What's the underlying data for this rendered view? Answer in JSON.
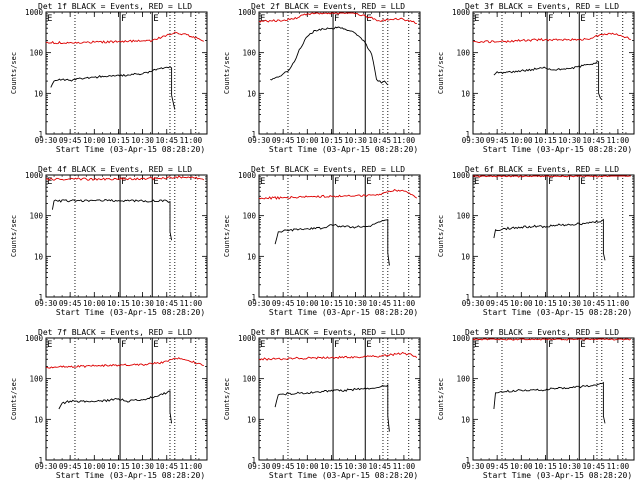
{
  "figure": {
    "y_axis_label": "Counts/sec",
    "x_axis_label": "Start Time (03-Apr-15 08:28:20)",
    "x_tick_labels": [
      "09:30",
      "09:45",
      "10:00",
      "10:15",
      "10:30",
      "10:45",
      "11:00"
    ],
    "y_tick_labels": [
      "1",
      "10",
      "100",
      "1000"
    ],
    "colors": {
      "events": "#000000",
      "lld": "#dd0000"
    }
  },
  "chart_data": [
    {
      "type": "line",
      "title": "Det 1f BLACK = Events, RED = LLD",
      "xlabel": "Start Time (03-Apr-15 08:28:20)",
      "ylabel": "Counts/sec",
      "xlim": [
        "09:30",
        "11:10"
      ],
      "ylim": [
        1,
        1000
      ],
      "yscale": "log",
      "solid_markers": [
        "10:16",
        "10:36"
      ],
      "dotted_markers": [
        "09:48",
        "10:47",
        "10:50",
        "11:03"
      ],
      "segment_labels": [
        {
          "text": "E",
          "x": "09:30"
        },
        {
          "text": "F",
          "x": "10:16"
        },
        {
          "text": "E",
          "x": "10:36"
        }
      ],
      "series": [
        {
          "name": "LLD",
          "color": "#dd0000",
          "x": [
            "09:30",
            "09:45",
            "10:00",
            "10:15",
            "10:30",
            "10:36",
            "10:45",
            "10:50",
            "10:55",
            "11:00",
            "11:05",
            "11:08"
          ],
          "y": [
            175,
            178,
            182,
            188,
            195,
            200,
            270,
            320,
            290,
            250,
            220,
            190
          ]
        },
        {
          "name": "Events",
          "color": "#000000",
          "x": [
            "09:33",
            "09:35",
            "09:40",
            "09:45",
            "09:50",
            "10:00",
            "10:10",
            "10:15",
            "10:20",
            "10:25",
            "10:30",
            "10:35",
            "10:40",
            "10:45",
            "10:48",
            "10:48",
            "10:50"
          ],
          "y": [
            14,
            20,
            22,
            21,
            23,
            25,
            27,
            28,
            27,
            31,
            30,
            34,
            40,
            44,
            42,
            9,
            4
          ]
        }
      ]
    },
    {
      "type": "line",
      "title": "Det 2f BLACK = Events, RED = LLD",
      "xlabel": "Start Time (03-Apr-15 08:28:20)",
      "ylabel": "Counts/sec",
      "xlim": [
        "09:30",
        "11:10"
      ],
      "ylim": [
        1,
        1000
      ],
      "yscale": "log",
      "solid_markers": [
        "10:16",
        "10:36"
      ],
      "dotted_markers": [
        "09:48",
        "10:47",
        "10:50",
        "11:03"
      ],
      "segment_labels": [
        {
          "text": "E",
          "x": "09:30"
        },
        {
          "text": "F",
          "x": "10:16"
        },
        {
          "text": "E",
          "x": "10:36"
        }
      ],
      "series": [
        {
          "name": "LLD",
          "color": "#dd0000",
          "x": [
            "09:30",
            "09:45",
            "09:55",
            "10:00",
            "10:05",
            "10:10",
            "10:15",
            "10:20",
            "10:25",
            "10:30",
            "10:36",
            "10:45",
            "10:50",
            "10:55",
            "11:00",
            "11:05",
            "11:08"
          ],
          "y": [
            600,
            620,
            750,
            900,
            1000,
            1000,
            1000,
            1000,
            1000,
            900,
            800,
            600,
            640,
            700,
            650,
            580,
            520
          ]
        },
        {
          "name": "Events",
          "color": "#000000",
          "x": [
            "09:37",
            "09:42",
            "09:48",
            "09:52",
            "09:55",
            "10:00",
            "10:05",
            "10:10",
            "10:15",
            "10:20",
            "10:25",
            "10:30",
            "10:35",
            "10:40",
            "10:43",
            "10:46",
            "10:48",
            "10:50"
          ],
          "y": [
            22,
            25,
            35,
            60,
            120,
            250,
            350,
            380,
            400,
            420,
            350,
            300,
            200,
            90,
            22,
            18,
            20,
            16
          ]
        }
      ]
    },
    {
      "type": "line",
      "title": "Det 3f BLACK = Events, RED = LLD",
      "xlabel": "Start Time (03-Apr-15 08:28:20)",
      "ylabel": "Counts/sec",
      "xlim": [
        "09:30",
        "11:10"
      ],
      "ylim": [
        1,
        1000
      ],
      "yscale": "log",
      "solid_markers": [
        "10:16",
        "10:36"
      ],
      "dotted_markers": [
        "09:48",
        "10:47",
        "10:50",
        "11:03"
      ],
      "segment_labels": [
        {
          "text": "E",
          "x": "09:30"
        },
        {
          "text": "F",
          "x": "10:16"
        },
        {
          "text": "E",
          "x": "10:36"
        }
      ],
      "series": [
        {
          "name": "LLD",
          "color": "#dd0000",
          "x": [
            "09:30",
            "09:45",
            "10:00",
            "10:15",
            "10:30",
            "10:40",
            "10:45",
            "10:50",
            "10:55",
            "11:00",
            "11:05",
            "11:08"
          ],
          "y": [
            190,
            185,
            200,
            210,
            205,
            215,
            240,
            280,
            300,
            270,
            240,
            210
          ]
        },
        {
          "name": "Events",
          "color": "#000000",
          "x": [
            "09:43",
            "09:45",
            "09:50",
            "10:00",
            "10:10",
            "10:15",
            "10:20",
            "10:30",
            "10:35",
            "10:40",
            "10:45",
            "10:48",
            "10:48",
            "10:50"
          ],
          "y": [
            28,
            34,
            32,
            36,
            40,
            42,
            38,
            41,
            45,
            50,
            55,
            60,
            10,
            7
          ]
        }
      ]
    },
    {
      "type": "line",
      "title": "Det 4f BLACK = Events, RED = LLD",
      "xlabel": "Start Time (03-Apr-15 08:28:20)",
      "ylabel": "Counts/sec",
      "xlim": [
        "09:30",
        "11:10"
      ],
      "ylim": [
        1,
        1000
      ],
      "yscale": "log",
      "solid_markers": [
        "10:16",
        "10:36"
      ],
      "dotted_markers": [
        "09:48",
        "10:47",
        "10:50",
        "11:03"
      ],
      "segment_labels": [
        {
          "text": "E",
          "x": "09:30"
        },
        {
          "text": "F",
          "x": "10:16"
        },
        {
          "text": "E",
          "x": "10:36"
        }
      ],
      "series": [
        {
          "name": "LLD",
          "color": "#dd0000",
          "x": [
            "09:30",
            "09:45",
            "10:00",
            "10:15",
            "10:30",
            "10:40",
            "10:45",
            "10:50",
            "10:55",
            "11:00",
            "11:05",
            "11:08"
          ],
          "y": [
            780,
            800,
            790,
            800,
            810,
            820,
            840,
            880,
            900,
            870,
            830,
            760
          ]
        },
        {
          "name": "Events",
          "color": "#000000",
          "x": [
            "09:34",
            "09:35",
            "09:45",
            "10:00",
            "10:15",
            "10:30",
            "10:45",
            "10:47",
            "10:47",
            "10:48"
          ],
          "y": [
            140,
            230,
            232,
            235,
            235,
            230,
            232,
            220,
            40,
            25
          ]
        }
      ]
    },
    {
      "type": "line",
      "title": "Det 5f BLACK = Events, RED = LLD",
      "xlabel": "Start Time (03-Apr-15 08:28:20)",
      "ylabel": "Counts/sec",
      "xlim": [
        "09:30",
        "11:10"
      ],
      "ylim": [
        1,
        1000
      ],
      "yscale": "log",
      "solid_markers": [
        "10:16",
        "10:36"
      ],
      "dotted_markers": [
        "09:48",
        "10:47",
        "10:50",
        "11:03"
      ],
      "segment_labels": [
        {
          "text": "E",
          "x": "09:30"
        },
        {
          "text": "F",
          "x": "10:16"
        },
        {
          "text": "E",
          "x": "10:36"
        }
      ],
      "series": [
        {
          "name": "LLD",
          "color": "#dd0000",
          "x": [
            "09:30",
            "09:45",
            "10:00",
            "10:15",
            "10:30",
            "10:40",
            "10:45",
            "10:50",
            "10:55",
            "11:00",
            "11:05",
            "11:08"
          ],
          "y": [
            270,
            275,
            290,
            300,
            310,
            320,
            340,
            380,
            420,
            400,
            330,
            270
          ]
        },
        {
          "name": "Events",
          "color": "#000000",
          "x": [
            "09:40",
            "09:42",
            "09:45",
            "10:00",
            "10:10",
            "10:15",
            "10:20",
            "10:30",
            "10:40",
            "10:45",
            "10:50",
            "10:50",
            "10:51"
          ],
          "y": [
            20,
            40,
            42,
            48,
            50,
            60,
            55,
            52,
            58,
            70,
            80,
            12,
            6
          ]
        }
      ]
    },
    {
      "type": "line",
      "title": "Det 6f BLACK = Events, RED = LLD",
      "xlabel": "Start Time (03-Apr-15 08:28:20)",
      "ylabel": "Counts/sec",
      "xlim": [
        "09:30",
        "11:10"
      ],
      "ylim": [
        1,
        1000
      ],
      "yscale": "log",
      "solid_markers": [
        "10:16",
        "10:36"
      ],
      "dotted_markers": [
        "09:48",
        "10:47",
        "10:50",
        "11:03"
      ],
      "segment_labels": [
        {
          "text": "E",
          "x": "09:30"
        },
        {
          "text": "F",
          "x": "10:16"
        },
        {
          "text": "E",
          "x": "10:36"
        }
      ],
      "series": [
        {
          "name": "LLD",
          "color": "#dd0000",
          "x": [
            "09:30",
            "10:00",
            "10:30",
            "11:00",
            "11:08"
          ],
          "y": [
            1000,
            1000,
            1000,
            1000,
            1000
          ]
        },
        {
          "name": "Events",
          "color": "#000000",
          "x": [
            "09:43",
            "09:44",
            "09:50",
            "10:00",
            "10:10",
            "10:15",
            "10:20",
            "10:30",
            "10:40",
            "10:45",
            "10:50",
            "10:51",
            "10:51",
            "10:52"
          ],
          "y": [
            28,
            45,
            48,
            52,
            55,
            52,
            58,
            60,
            65,
            70,
            75,
            80,
            12,
            8
          ]
        }
      ]
    },
    {
      "type": "line",
      "title": "Det 7f BLACK = Events, RED = LLD",
      "xlabel": "Start Time (03-Apr-15 08:28:20)",
      "ylabel": "Counts/sec",
      "xlim": [
        "09:30",
        "11:10"
      ],
      "ylim": [
        1,
        1000
      ],
      "yscale": "log",
      "solid_markers": [
        "10:16",
        "10:36"
      ],
      "dotted_markers": [
        "09:48",
        "10:47",
        "10:50",
        "11:03"
      ],
      "segment_labels": [
        {
          "text": "E",
          "x": "09:30"
        },
        {
          "text": "F",
          "x": "10:16"
        },
        {
          "text": "E",
          "x": "10:36"
        }
      ],
      "series": [
        {
          "name": "LLD",
          "color": "#dd0000",
          "x": [
            "09:30",
            "09:45",
            "10:00",
            "10:15",
            "10:30",
            "10:40",
            "10:45",
            "10:50",
            "10:55",
            "11:00",
            "11:05",
            "11:08"
          ],
          "y": [
            190,
            195,
            205,
            215,
            220,
            240,
            270,
            320,
            300,
            260,
            240,
            210
          ]
        },
        {
          "name": "Events",
          "color": "#000000",
          "x": [
            "09:38",
            "09:40",
            "09:45",
            "10:00",
            "10:10",
            "10:15",
            "10:20",
            "10:30",
            "10:40",
            "10:45",
            "10:47",
            "10:47",
            "10:48"
          ],
          "y": [
            18,
            25,
            28,
            27,
            30,
            32,
            28,
            30,
            38,
            45,
            50,
            15,
            8
          ]
        }
      ]
    },
    {
      "type": "line",
      "title": "Det 8f BLACK = Events, RED = LLD",
      "xlabel": "Start Time (03-Apr-15 08:28:20)",
      "ylabel": "Counts/sec",
      "xlim": [
        "09:30",
        "11:10"
      ],
      "ylim": [
        1,
        1000
      ],
      "yscale": "log",
      "solid_markers": [
        "10:16",
        "10:36"
      ],
      "dotted_markers": [
        "09:48",
        "10:47",
        "10:50",
        "11:03"
      ],
      "segment_labels": [
        {
          "text": "E",
          "x": "09:30"
        },
        {
          "text": "F",
          "x": "10:16"
        },
        {
          "text": "E",
          "x": "10:36"
        }
      ],
      "series": [
        {
          "name": "LLD",
          "color": "#dd0000",
          "x": [
            "09:30",
            "09:45",
            "10:00",
            "10:15",
            "10:30",
            "10:40",
            "10:45",
            "10:50",
            "10:55",
            "11:00",
            "11:05",
            "11:08"
          ],
          "y": [
            300,
            310,
            320,
            330,
            340,
            350,
            360,
            380,
            400,
            420,
            380,
            330
          ]
        },
        {
          "name": "Events",
          "color": "#000000",
          "x": [
            "09:40",
            "09:42",
            "09:45",
            "10:00",
            "10:10",
            "10:15",
            "10:20",
            "10:30",
            "10:40",
            "10:45",
            "10:50",
            "10:50",
            "10:51"
          ],
          "y": [
            20,
            40,
            42,
            45,
            48,
            52,
            50,
            55,
            58,
            62,
            70,
            12,
            5
          ]
        }
      ]
    },
    {
      "type": "line",
      "title": "Det 9f BLACK = Events, RED = LLD",
      "xlabel": "Start Time (03-Apr-15 08:28:20)",
      "ylabel": "Counts/sec",
      "xlim": [
        "09:30",
        "11:10"
      ],
      "ylim": [
        1,
        1000
      ],
      "yscale": "log",
      "solid_markers": [
        "10:16",
        "10:36"
      ],
      "dotted_markers": [
        "09:48",
        "10:47",
        "10:50",
        "11:03"
      ],
      "segment_labels": [
        {
          "text": "E",
          "x": "09:30"
        },
        {
          "text": "F",
          "x": "10:16"
        },
        {
          "text": "E",
          "x": "10:36"
        }
      ],
      "series": [
        {
          "name": "LLD",
          "color": "#dd0000",
          "x": [
            "09:30",
            "10:00",
            "10:30",
            "11:00",
            "11:08"
          ],
          "y": [
            1000,
            1000,
            1000,
            1000,
            1000
          ]
        },
        {
          "name": "Events",
          "color": "#000000",
          "x": [
            "09:43",
            "09:44",
            "09:50",
            "10:00",
            "10:10",
            "10:15",
            "10:20",
            "10:30",
            "10:40",
            "10:45",
            "10:50",
            "10:51",
            "10:51",
            "10:52"
          ],
          "y": [
            18,
            45,
            48,
            52,
            55,
            52,
            58,
            60,
            65,
            70,
            75,
            80,
            12,
            8
          ]
        }
      ]
    }
  ]
}
